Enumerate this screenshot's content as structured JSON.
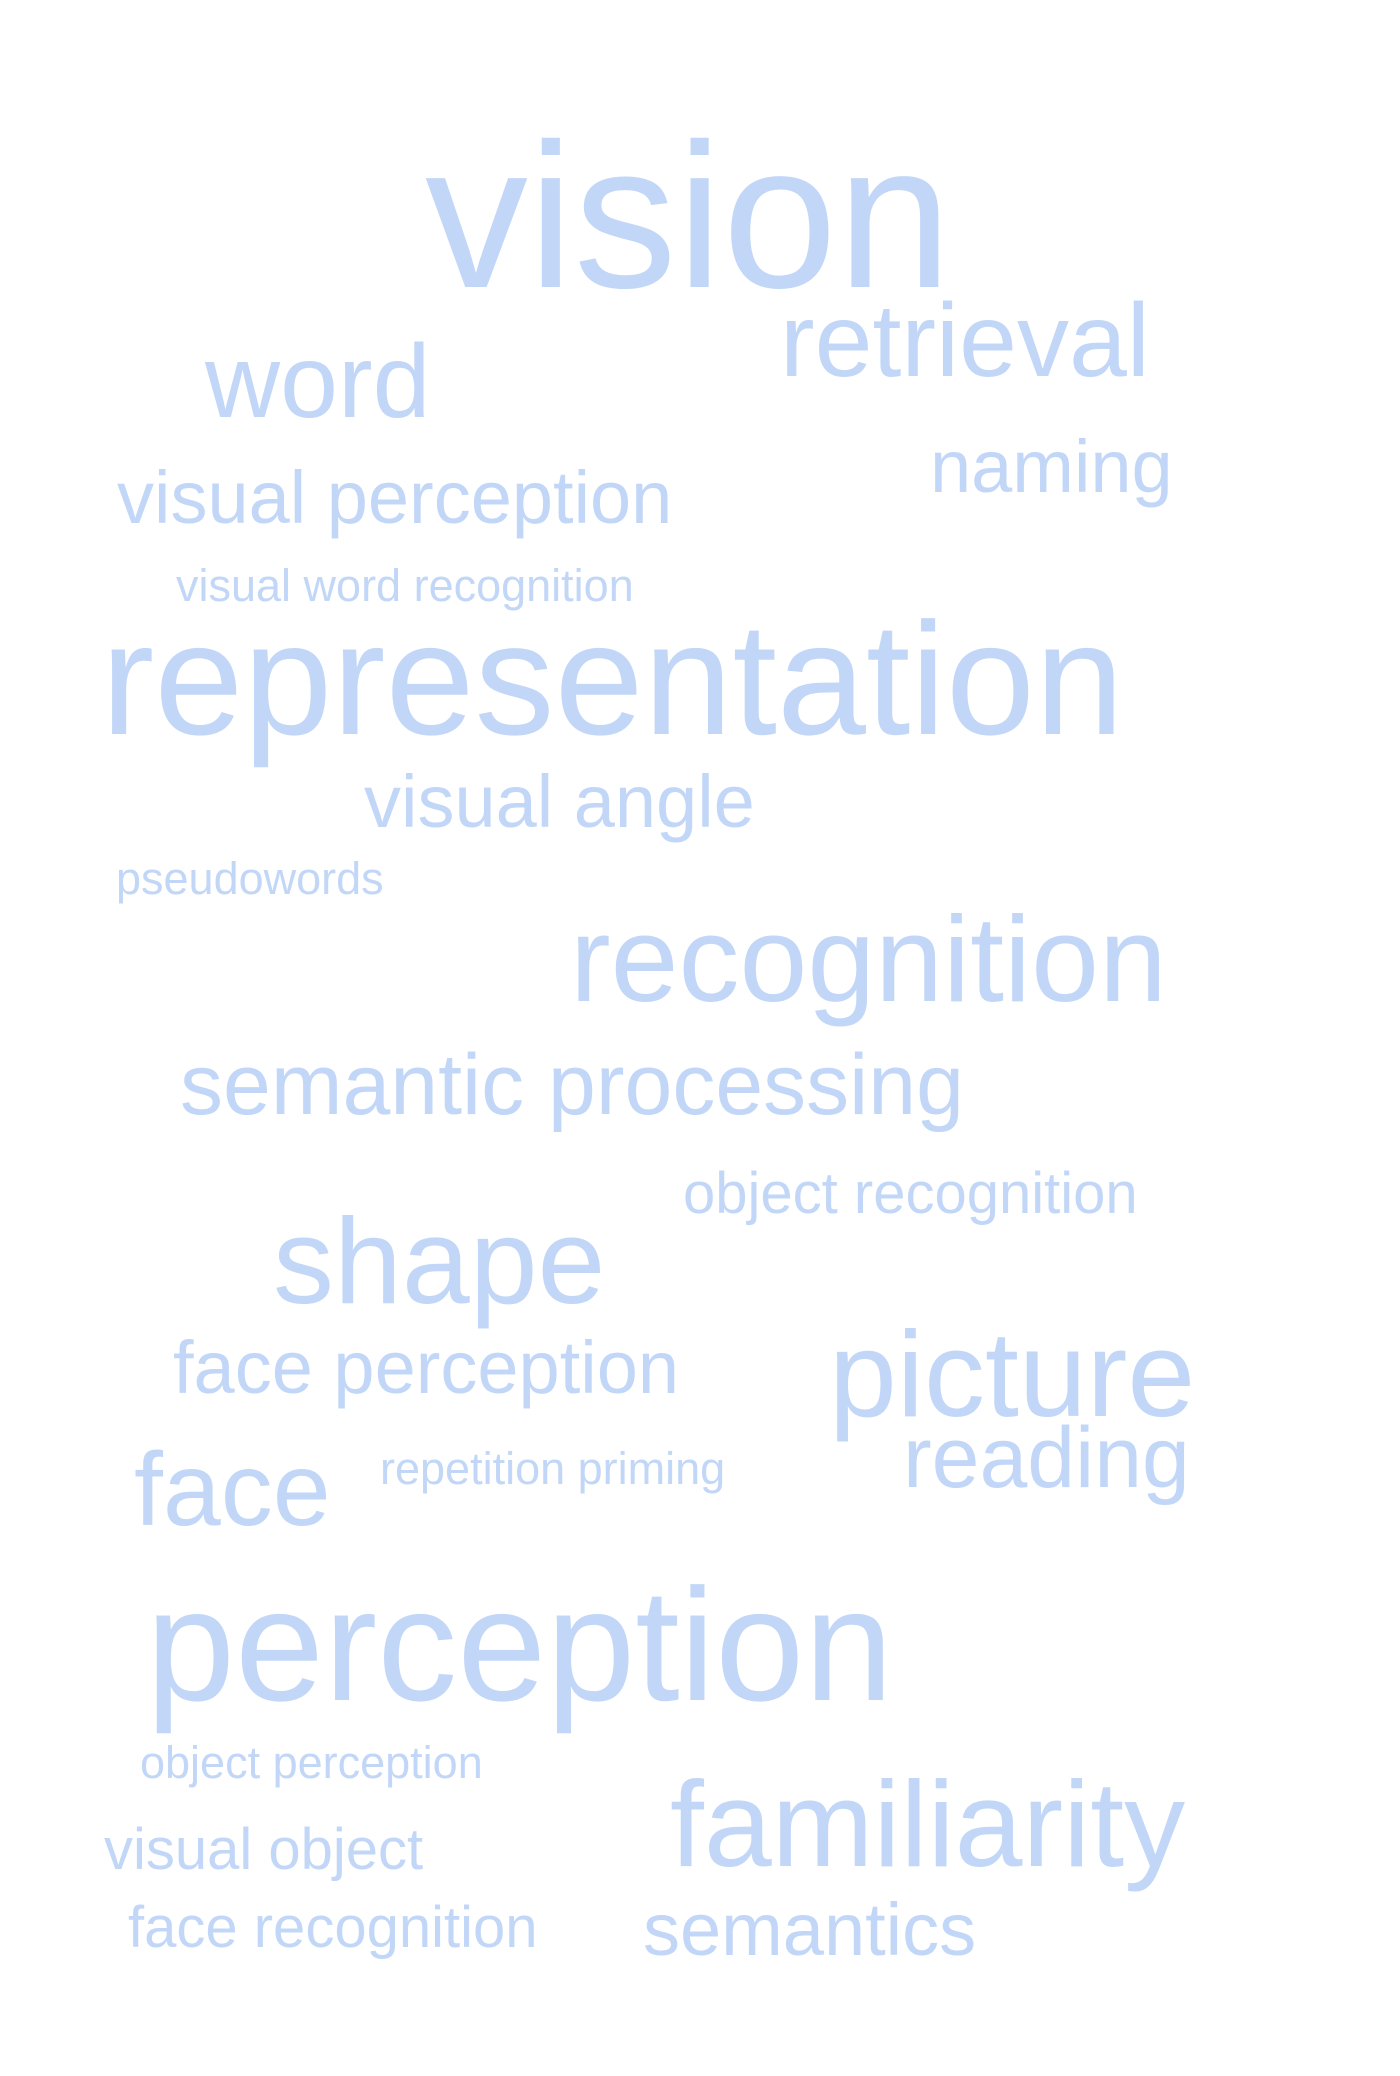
{
  "cloud": {
    "color": "#c2d7f7",
    "words": [
      "vision",
      "retrieval",
      "word",
      "naming",
      "visual perception",
      "visual word recognition",
      "representation",
      "visual angle",
      "pseudowords",
      "recognition",
      "semantic processing",
      "object recognition",
      "shape",
      "face perception",
      "picture",
      "face",
      "repetition priming",
      "reading",
      "perception",
      "object perception",
      "familiarity",
      "visual object",
      "face recognition",
      "semantics"
    ]
  }
}
